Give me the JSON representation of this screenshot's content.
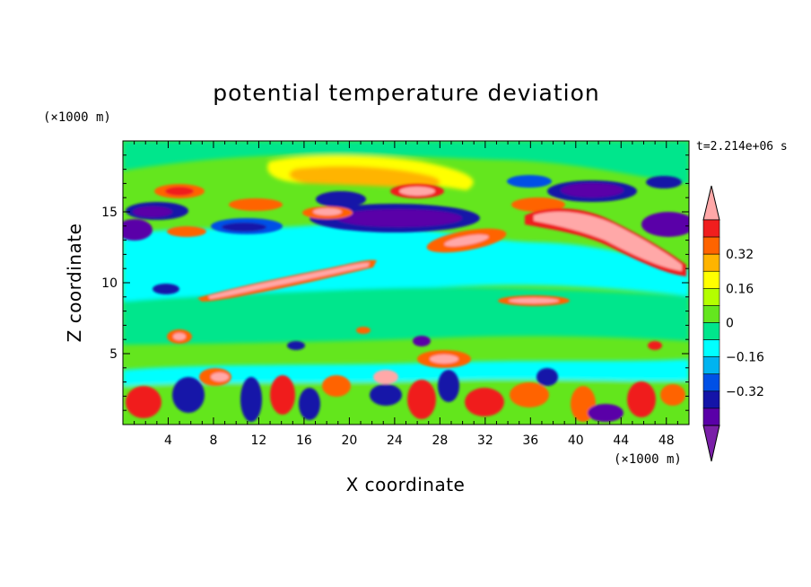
{
  "chart_data": {
    "type": "heatmap",
    "title": "potential temperature deviation",
    "xlabel": "X coordinate",
    "ylabel": "Z coordinate",
    "x_unit": "(×1000 m)",
    "z_unit": "(×1000 m)",
    "time_label": "t=2.214e+06 s",
    "xlim": [
      0,
      50
    ],
    "zlim": [
      0,
      20
    ],
    "x_ticks": [
      4,
      8,
      12,
      16,
      20,
      24,
      28,
      32,
      36,
      40,
      44,
      48
    ],
    "z_ticks": [
      5,
      10,
      15
    ],
    "colorbar": {
      "levels": [
        -0.48,
        -0.4,
        -0.32,
        -0.24,
        -0.16,
        -0.08,
        0,
        0.08,
        0.16,
        0.24,
        0.32,
        0.4,
        0.48
      ],
      "labels": [
        "0.32",
        "0.16",
        "0",
        "-0.16",
        "-0.32"
      ],
      "label_values": [
        0.32,
        0.16,
        0,
        -0.16,
        -0.32
      ],
      "colors": [
        "#7a1fa8",
        "#5a00a8",
        "#1414a8",
        "#0050e6",
        "#00b4f0",
        "#00ffff",
        "#00e68c",
        "#64e61e",
        "#b4ff00",
        "#ffff00",
        "#ffb400",
        "#ff6400",
        "#f01e1e",
        "#ffa8a8"
      ]
    },
    "features": [
      {
        "name": "warm filament mid-level",
        "x0": 7,
        "z0": 9.2,
        "x1": 20,
        "z1": 11,
        "sign": "positive"
      },
      {
        "name": "warm filament upper right",
        "x0": 36,
        "z0": 14.5,
        "x1": 48,
        "z1": 11,
        "sign": "positive"
      },
      {
        "name": "cold layer aloft",
        "x0": 16,
        "z0": 13.5,
        "x1": 32,
        "z1": 15,
        "sign": "negative"
      }
    ]
  }
}
